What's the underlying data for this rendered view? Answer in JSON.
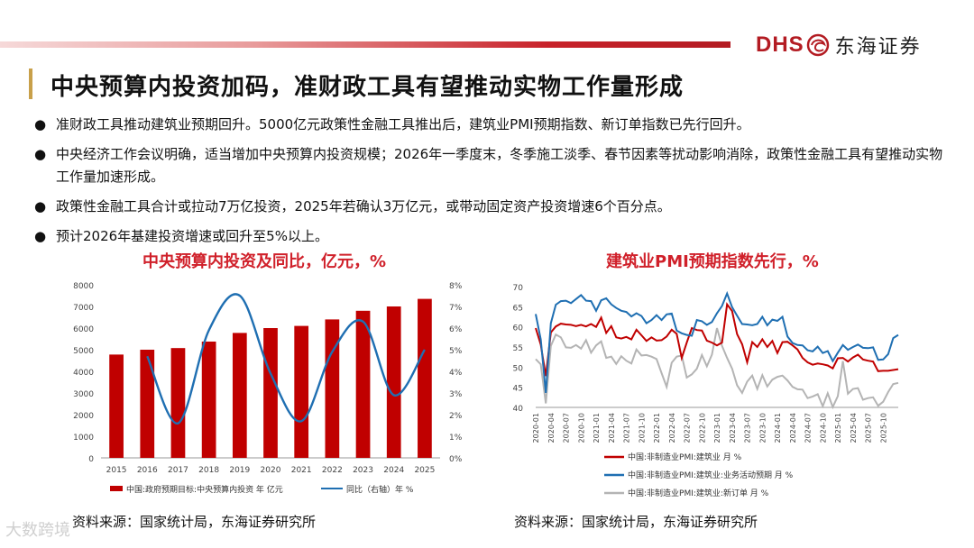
{
  "header": {
    "logo_dhs": "DHS",
    "logo_cn": "东海证券",
    "title": "中央预算内投资加码，准财政工具有望推动实物工作量形成"
  },
  "bullets": [
    "准财政工具推动建筑业预期回升。5000亿元政策性金融工具推出后，建筑业PMI预期指数、新订单指数已先行回升。",
    "中央经济工作会议明确，适当增加中央预算内投资规模；2026年一季度末，冬季施工淡季、春节因素等扰动影响消除，政策性金融工具有望推动实物工作量加速形成。",
    "政策性金融工具合计或拉动7万亿投资，2025年若确认3万亿元，或带动固定资产投资增速6个百分点。",
    "预计2026年基建投资增速或回升至5%以上。"
  ],
  "bullet_symbol": "●",
  "source_left": "资料来源：国家统计局，东海证券研究所",
  "source_right": "资料来源：国家统计局，东海证券研究所",
  "watermark": "大数跨境",
  "colors": {
    "red": "#c00000",
    "blue": "#1f6fb2",
    "gray": "#b4b4b4",
    "brand": "#b31b22"
  },
  "chart_data": [
    {
      "type": "bar",
      "title": "中央预算内投资及同比，亿元，%",
      "categories": [
        "2015",
        "2016",
        "2017",
        "2018",
        "2019",
        "2020",
        "2021",
        "2022",
        "2023",
        "2024",
        "2025"
      ],
      "series": [
        {
          "name": "中国:政府预期目标:中央预算内投资 年 亿元",
          "type": "bar",
          "axis": "left",
          "values": [
            4776,
            5000,
            5076,
            5376,
            5776,
            6000,
            6100,
            6400,
            6800,
            7000,
            7350
          ]
        },
        {
          "name": "同比（右轴）年 %",
          "type": "line",
          "axis": "right",
          "values": [
            null,
            4.7,
            1.6,
            5.9,
            7.5,
            3.9,
            1.7,
            4.9,
            6.3,
            2.9,
            5.0
          ]
        }
      ],
      "ylim_left": [
        0,
        8000
      ],
      "yticks_left": [
        "0",
        "1000",
        "2000",
        "3000",
        "4000",
        "5000",
        "6000",
        "7000",
        "8000"
      ],
      "ylim_right": [
        0,
        8
      ],
      "yticks_right": [
        "0%",
        "1%",
        "2%",
        "3%",
        "4%",
        "5%",
        "6%",
        "7%",
        "8%"
      ],
      "legend": [
        "中国:政府预期目标:中央预算内投资 年 亿元",
        "同比（右轴）年 %"
      ],
      "legend_position": "bottom"
    },
    {
      "type": "line",
      "title": "建筑业PMI预期指数先行，%",
      "xticks": [
        "2020-01",
        "2020-04",
        "2020-07",
        "2020-10",
        "2021-01",
        "2021-04",
        "2021-07",
        "2021-10",
        "2022-01",
        "2022-04",
        "2022-07",
        "2022-10",
        "2023-01",
        "2023-04",
        "2023-07",
        "2023-10",
        "2024-01",
        "2024-04",
        "2024-07",
        "2024-10",
        "2025-01",
        "2025-04",
        "2025-07",
        "2025-10"
      ],
      "ylim": [
        40,
        70
      ],
      "yticks": [
        "40",
        "45",
        "50",
        "55",
        "60",
        "65",
        "70"
      ],
      "series": [
        {
          "name": "中国:非制造业PMI:建筑业 月 %",
          "color": "red",
          "values": [
            59.7,
            55.6,
            47.8,
            58.6,
            60.1,
            60.8,
            60.6,
            60.5,
            60.2,
            60.5,
            60.1,
            60.7,
            60.0,
            62.3,
            58.5,
            60.2,
            57.4,
            57.1,
            57.5,
            56.9,
            59.3,
            57.9,
            56.5,
            57.4,
            56.6,
            56.7,
            57.6,
            59.3,
            58.3,
            52.3,
            56.1,
            59.7,
            59.2,
            59.1,
            56.6,
            56.1,
            55.4,
            56.1,
            65.6,
            63.9,
            58.2,
            55.7,
            51.2,
            56.2,
            55.0,
            56.9,
            55.0,
            56.5,
            53.5,
            56.2,
            56.3,
            55.4,
            54.4,
            52.3,
            51.2,
            50.6,
            50.9,
            50.7,
            50.4,
            49.7,
            52.2,
            52.3,
            51.4,
            52.4,
            53.1,
            51.9,
            51.6,
            51.4,
            49.0,
            49.1,
            49.1,
            49.3,
            49.5
          ]
        },
        {
          "name": "中国:非制造业PMI:建筑业:业务活动预期 月 %",
          "color": "blue",
          "values": [
            63.2,
            56.9,
            43.6,
            60.9,
            65.5,
            66.4,
            66.5,
            65.9,
            66.9,
            67.9,
            66.5,
            66.4,
            64.0,
            66.6,
            67.1,
            65.6,
            64.7,
            64.0,
            63.7,
            62.6,
            63.4,
            62.7,
            60.9,
            61.7,
            62.9,
            61.7,
            63.1,
            63.3,
            59.1,
            58.4,
            58.0,
            57.8,
            61.7,
            61.4,
            60.5,
            61.2,
            63.4,
            65.2,
            68.3,
            64.9,
            62.8,
            60.7,
            60.6,
            60.4,
            60.7,
            62.5,
            60.4,
            61.8,
            61.5,
            62.5,
            57.6,
            56.0,
            55.5,
            55.4,
            54.2,
            53.9,
            55.1,
            53.5,
            54.0,
            51.5,
            53.6,
            55.5,
            54.3,
            55.0,
            55.6,
            54.8,
            54.7,
            54.9,
            51.8,
            51.9,
            53.2,
            57.2,
            58.0
          ]
        },
        {
          "name": "中国:非制造业PMI:建筑业:新订单 月 %",
          "color": "gray",
          "values": [
            52.0,
            50.7,
            41.0,
            55.3,
            58.1,
            57.4,
            54.9,
            54.8,
            55.5,
            54.6,
            56.7,
            53.6,
            55.4,
            56.4,
            52.3,
            52.6,
            50.8,
            52.7,
            51.6,
            50.9,
            54.4,
            52.9,
            53.0,
            52.6,
            52.0,
            48.5,
            45.1,
            51.1,
            52.6,
            52.9,
            47.4,
            48.2,
            49.6,
            53.0,
            50.2,
            53.1,
            59.7,
            55.3,
            52.3,
            49.6,
            45.5,
            43.6,
            46.4,
            47.9,
            44.6,
            48.0,
            45.2,
            46.9,
            47.6,
            47.9,
            46.7,
            45.1,
            44.5,
            44.4,
            42.3,
            42.7,
            43.3,
            40.3,
            43.5,
            40.1,
            42.8,
            51.5,
            43.4,
            44.6,
            44.8,
            41.9,
            42.3,
            42.5,
            40.4,
            41.4,
            43.8,
            45.8,
            46.1
          ]
        }
      ],
      "legend": [
        "中国:非制造业PMI:建筑业 月 %",
        "中国:非制造业PMI:建筑业:业务活动预期 月 %",
        "中国:非制造业PMI:建筑业:新订单 月 %"
      ],
      "legend_position": "bottom"
    }
  ]
}
